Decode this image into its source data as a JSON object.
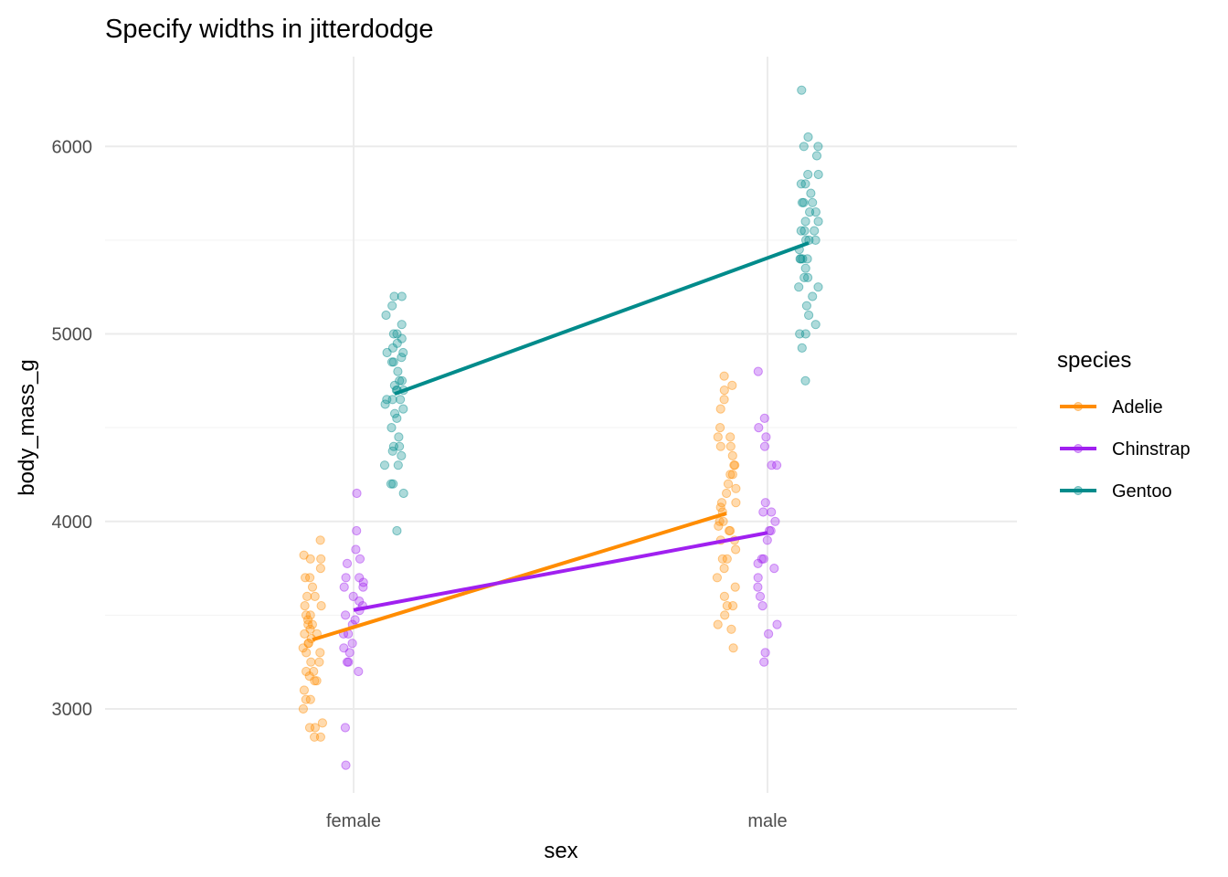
{
  "chart_data": {
    "type": "scatter",
    "title": "Specify widths in jitterdodge",
    "xlabel": "sex",
    "ylabel": "body_mass_g",
    "categories": [
      "female",
      "male"
    ],
    "ylim": [
      2500,
      6400
    ],
    "yticks": [
      3000,
      4000,
      5000,
      6000
    ],
    "grid": true,
    "legend": {
      "title": "species",
      "position": "right"
    },
    "series": [
      {
        "name": "Adelie",
        "color": "#FF8C00",
        "mean_line": [
          3369,
          4043
        ],
        "points": {
          "female": [
            3900,
            3800,
            3820,
            3800,
            3750,
            3700,
            3700,
            3650,
            3600,
            3600,
            3550,
            3550,
            3500,
            3500,
            3450,
            3450,
            3400,
            3400,
            3350,
            3350,
            3325,
            3300,
            3300,
            3250,
            3250,
            3200,
            3200,
            3175,
            3150,
            3150,
            3100,
            3050,
            3050,
            3000,
            2925,
            2900,
            2900,
            2850,
            2850,
            3475,
            3425,
            3375
          ],
          "male": [
            4775,
            4725,
            4700,
            4650,
            4600,
            4500,
            4450,
            4450,
            4400,
            4400,
            4350,
            4300,
            4300,
            4250,
            4250,
            4200,
            4150,
            4100,
            4100,
            4050,
            4000,
            4000,
            3950,
            3950,
            3900,
            3900,
            3850,
            3800,
            3800,
            3750,
            3700,
            3650,
            3600,
            3550,
            3550,
            3500,
            3450,
            3425,
            3325,
            4075,
            4175,
            3975
          ]
        }
      },
      {
        "name": "Chinstrap",
        "color": "#A020F0",
        "mean_line": [
          3527,
          3939
        ],
        "points": {
          "female": [
            4150,
            3950,
            3850,
            3800,
            3775,
            3700,
            3700,
            3675,
            3650,
            3650,
            3600,
            3575,
            3525,
            3500,
            3450,
            3400,
            3400,
            3350,
            3325,
            3300,
            3250,
            3250,
            3200,
            2900,
            2700,
            3550,
            3475
          ],
          "male": [
            4800,
            4550,
            4500,
            4450,
            4400,
            4300,
            4300,
            4100,
            4050,
            4050,
            4000,
            3950,
            3950,
            3800,
            3800,
            3775,
            3750,
            3700,
            3650,
            3600,
            3550,
            3450,
            3400,
            3300,
            3250,
            3900
          ]
        }
      },
      {
        "name": "Gentoo",
        "color": "#008B8B",
        "mean_line": [
          4680,
          5485
        ],
        "points": {
          "female": [
            5200,
            5200,
            5150,
            5100,
            5050,
            5000,
            5000,
            4975,
            4950,
            4925,
            4900,
            4875,
            4850,
            4850,
            4800,
            4750,
            4750,
            4725,
            4700,
            4700,
            4650,
            4650,
            4625,
            4600,
            4575,
            4550,
            4500,
            4450,
            4400,
            4400,
            4375,
            4350,
            4300,
            4300,
            4200,
            4200,
            4150,
            3950,
            4650,
            4700,
            4900
          ],
          "male": [
            6300,
            6050,
            6000,
            6000,
            5950,
            5850,
            5850,
            5800,
            5800,
            5750,
            5700,
            5700,
            5700,
            5650,
            5650,
            5600,
            5550,
            5550,
            5550,
            5500,
            5500,
            5500,
            5450,
            5400,
            5400,
            5400,
            5350,
            5300,
            5300,
            5250,
            5250,
            5200,
            5150,
            5100,
            5050,
            5000,
            5000,
            4925,
            4750,
            5600,
            5400
          ]
        }
      }
    ]
  }
}
